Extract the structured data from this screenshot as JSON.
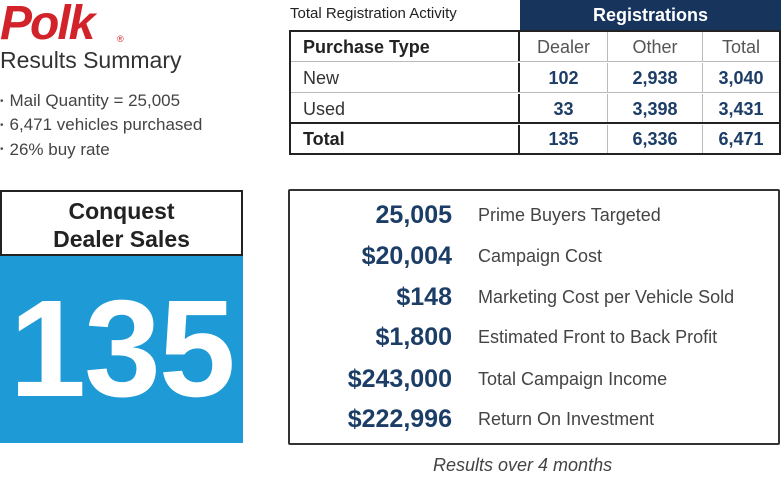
{
  "logo": {
    "text": "Polk",
    "registered": "®"
  },
  "summary": {
    "title": "Results Summary",
    "bullets": [
      "Mail Quantity = 25,005",
      "6,471 vehicles purchased",
      "26% buy rate"
    ]
  },
  "registration": {
    "caption": "Total Registration Activity",
    "group_header": "Registrations",
    "columns": [
      "Purchase Type",
      "Dealer",
      "Other",
      "Total"
    ],
    "rows": [
      {
        "type": "New",
        "dealer": "102",
        "other": "2,938",
        "total": "3,040"
      },
      {
        "type": "Used",
        "dealer": "33",
        "other": "3,398",
        "total": "3,431"
      },
      {
        "type": "Total",
        "dealer": "135",
        "other": "6,336",
        "total": "6,471"
      }
    ]
  },
  "conquest": {
    "title_line1": "Conquest",
    "title_line2": "Dealer Sales",
    "value": "135"
  },
  "metrics": [
    {
      "value": "25,005",
      "label": "Prime Buyers Targeted"
    },
    {
      "value": "$20,004",
      "label": "Campaign Cost"
    },
    {
      "value": "$148",
      "label": "Marketing Cost per Vehicle Sold"
    },
    {
      "value": "$1,800",
      "label": "Estimated Front to Back Profit"
    },
    {
      "value": "$243,000",
      "label": "Total Campaign Income"
    },
    {
      "value": "$222,996",
      "label": "Return On Investment"
    }
  ],
  "footnote": "Results over 4 months",
  "colors": {
    "brand_red": "#d2232a",
    "header_navy": "#17355c",
    "number_navy": "#1c3d66",
    "panel_blue": "#1e9ad6"
  }
}
